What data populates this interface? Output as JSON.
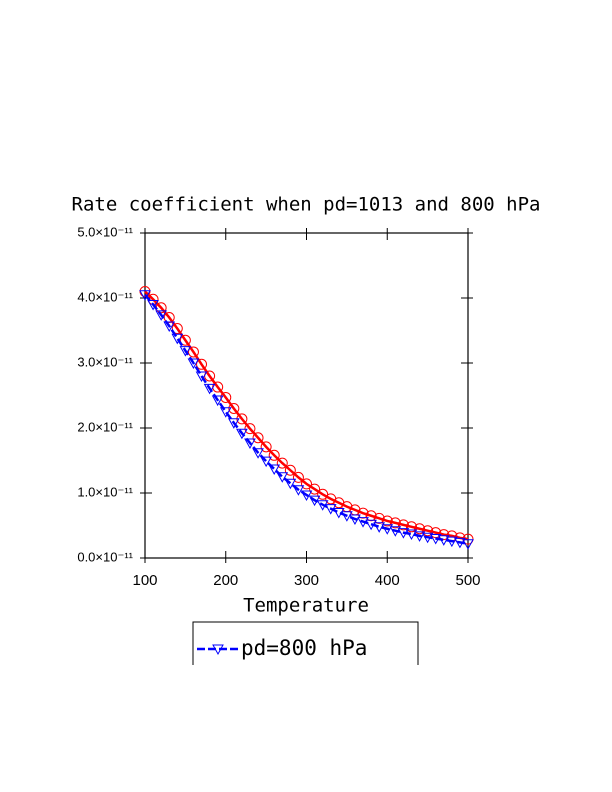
{
  "chart_data": {
    "type": "line",
    "title": "Rate coefficient when pd=1013 and 800 hPa",
    "x_label": "Temperature",
    "x": [
      100,
      110,
      120,
      130,
      140,
      150,
      160,
      170,
      180,
      190,
      200,
      210,
      220,
      230,
      240,
      250,
      260,
      270,
      280,
      290,
      300,
      310,
      320,
      330,
      340,
      350,
      360,
      370,
      380,
      390,
      400,
      410,
      420,
      430,
      440,
      450,
      460,
      470,
      480,
      490,
      500
    ],
    "series": [
      {
        "color": "#ff0000",
        "marker": "circle",
        "dashed": false,
        "values": [
          4.1e-11,
          3.98e-11,
          3.85e-11,
          3.7e-11,
          3.53e-11,
          3.35e-11,
          3.17e-11,
          2.98e-11,
          2.8e-11,
          2.63e-11,
          2.47e-11,
          2.3e-11,
          2.14e-11,
          1.99e-11,
          1.85e-11,
          1.71e-11,
          1.58e-11,
          1.46e-11,
          1.35e-11,
          1.24e-11,
          1.14e-11,
          1.06e-11,
          9.8e-12,
          9.1e-12,
          8.5e-12,
          7.9e-12,
          7.4e-12,
          6.9e-12,
          6.5e-12,
          6.1e-12,
          5.7e-12,
          5.4e-12,
          5.1e-12,
          4.8e-12,
          4.5e-12,
          4.2e-12,
          3.9e-12,
          3.6e-12,
          3.4e-12,
          3.1e-12,
          2.9e-12
        ]
      },
      {
        "name": "pd=800 hPa",
        "color": "#0000ff",
        "marker": "triangle-down",
        "dashed": true,
        "values": [
          4.05e-11,
          3.9e-11,
          3.74e-11,
          3.57e-11,
          3.38e-11,
          3.19e-11,
          3e-11,
          2.8e-11,
          2.61e-11,
          2.43e-11,
          2.25e-11,
          2.08e-11,
          1.92e-11,
          1.77e-11,
          1.62e-11,
          1.49e-11,
          1.37e-11,
          1.25e-11,
          1.15e-11,
          1.05e-11,
          9.7e-12,
          8.9e-12,
          8.2e-12,
          7.6e-12,
          7e-12,
          6.5e-12,
          6e-12,
          5.6e-12,
          5.2e-12,
          4.8e-12,
          4.5e-12,
          4.2e-12,
          3.9e-12,
          3.7e-12,
          3.4e-12,
          3.2e-12,
          3e-12,
          2.8e-12,
          2.6e-12,
          2.4e-12,
          2.2e-12
        ]
      }
    ],
    "xlim": [
      100,
      500
    ],
    "xticks": [
      100,
      200,
      300,
      400,
      500
    ],
    "ylim": [
      0,
      5e-11
    ],
    "yticks": [
      {
        "value": 0,
        "label": "0.0×10⁻¹¹"
      },
      {
        "value": 1e-11,
        "label": "1.0×10⁻¹¹"
      },
      {
        "value": 2e-11,
        "label": "2.0×10⁻¹¹"
      },
      {
        "value": 3e-11,
        "label": "3.0×10⁻¹¹"
      },
      {
        "value": 4e-11,
        "label": "4.0×10⁻¹¹"
      },
      {
        "value": 5e-11,
        "label": "5.0×10⁻¹¹"
      }
    ]
  }
}
